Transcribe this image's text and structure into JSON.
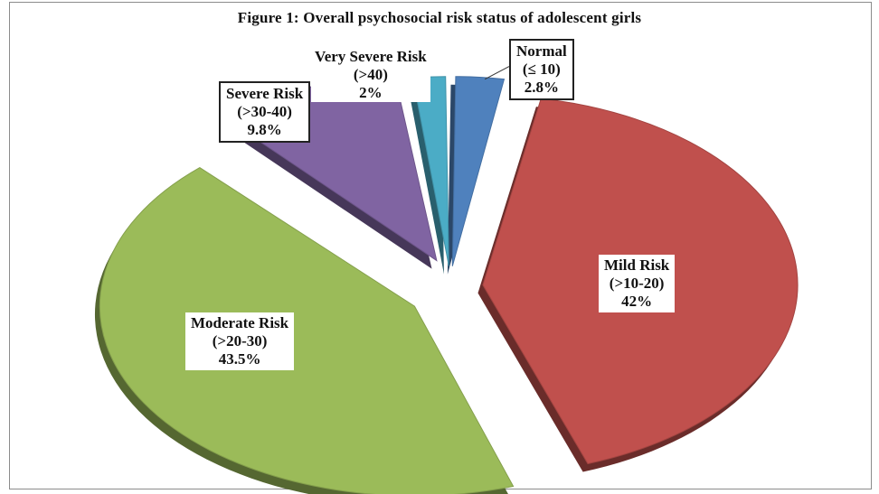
{
  "chart_data": {
    "type": "pie",
    "title": "Figure 1: Overall psychosocial risk status of adolescent girls",
    "slices": [
      {
        "name": "Normal",
        "range": "(≤ 10)",
        "value": 2.8,
        "label_value": "2.8%",
        "color": "#4f81bd"
      },
      {
        "name": "Mild Risk",
        "range": "(>10-20)",
        "value": 42,
        "label_value": "42%",
        "color": "#c0504d"
      },
      {
        "name": "Moderate Risk",
        "range": "(>20-30)",
        "value": 43.5,
        "label_value": "43.5%",
        "color": "#9bbb59"
      },
      {
        "name": "Severe Risk",
        "range": "(>30-40)",
        "value": 9.8,
        "label_value": "9.8%",
        "color": "#8064a2"
      },
      {
        "name": "Very Severe Risk",
        "range": "(>40)",
        "value": 2,
        "label_value": "2%",
        "color": "#4bacc6"
      }
    ],
    "exploded": true,
    "style": "3d",
    "legend": "none"
  }
}
